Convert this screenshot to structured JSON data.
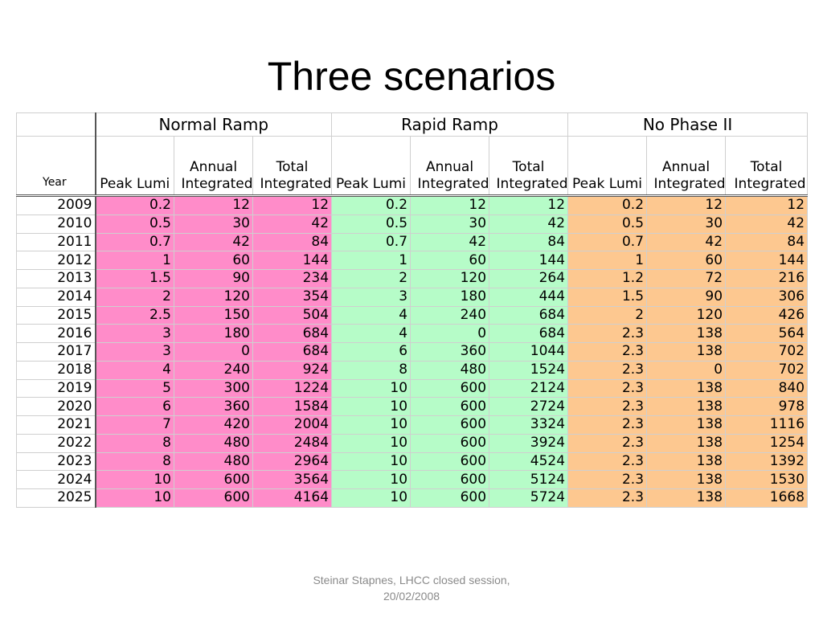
{
  "title": "Three scenarios",
  "table": {
    "groups": [
      "Normal Ramp",
      "Rapid Ramp",
      "No Phase II"
    ],
    "year_label": "Year",
    "sub_headers": [
      "Peak Lumi",
      "Annual Integrated",
      "Total Integrated"
    ],
    "group_colors": [
      "#ff8cc9",
      "#b6fcc8",
      "#fdc890"
    ],
    "rows": [
      [
        "2009",
        "0.2",
        "12",
        "12",
        "0.2",
        "12",
        "12",
        "0.2",
        "12",
        "12"
      ],
      [
        "2010",
        "0.5",
        "30",
        "42",
        "0.5",
        "30",
        "42",
        "0.5",
        "30",
        "42"
      ],
      [
        "2011",
        "0.7",
        "42",
        "84",
        "0.7",
        "42",
        "84",
        "0.7",
        "42",
        "84"
      ],
      [
        "2012",
        "1",
        "60",
        "144",
        "1",
        "60",
        "144",
        "1",
        "60",
        "144"
      ],
      [
        "2013",
        "1.5",
        "90",
        "234",
        "2",
        "120",
        "264",
        "1.2",
        "72",
        "216"
      ],
      [
        "2014",
        "2",
        "120",
        "354",
        "3",
        "180",
        "444",
        "1.5",
        "90",
        "306"
      ],
      [
        "2015",
        "2.5",
        "150",
        "504",
        "4",
        "240",
        "684",
        "2",
        "120",
        "426"
      ],
      [
        "2016",
        "3",
        "180",
        "684",
        "4",
        "0",
        "684",
        "2.3",
        "138",
        "564"
      ],
      [
        "2017",
        "3",
        "0",
        "684",
        "6",
        "360",
        "1044",
        "2.3",
        "138",
        "702"
      ],
      [
        "2018",
        "4",
        "240",
        "924",
        "8",
        "480",
        "1524",
        "2.3",
        "0",
        "702"
      ],
      [
        "2019",
        "5",
        "300",
        "1224",
        "10",
        "600",
        "2124",
        "2.3",
        "138",
        "840"
      ],
      [
        "2020",
        "6",
        "360",
        "1584",
        "10",
        "600",
        "2724",
        "2.3",
        "138",
        "978"
      ],
      [
        "2021",
        "7",
        "420",
        "2004",
        "10",
        "600",
        "3324",
        "2.3",
        "138",
        "1116"
      ],
      [
        "2022",
        "8",
        "480",
        "2484",
        "10",
        "600",
        "3924",
        "2.3",
        "138",
        "1254"
      ],
      [
        "2023",
        "8",
        "480",
        "2964",
        "10",
        "600",
        "4524",
        "2.3",
        "138",
        "1392"
      ],
      [
        "2024",
        "10",
        "600",
        "3564",
        "10",
        "600",
        "5124",
        "2.3",
        "138",
        "1530"
      ],
      [
        "2025",
        "10",
        "600",
        "4164",
        "10",
        "600",
        "5724",
        "2.3",
        "138",
        "1668"
      ]
    ]
  },
  "footer": {
    "line1": "Steinar Stapnes, LHCC closed session,",
    "line2": "20/02/2008"
  }
}
